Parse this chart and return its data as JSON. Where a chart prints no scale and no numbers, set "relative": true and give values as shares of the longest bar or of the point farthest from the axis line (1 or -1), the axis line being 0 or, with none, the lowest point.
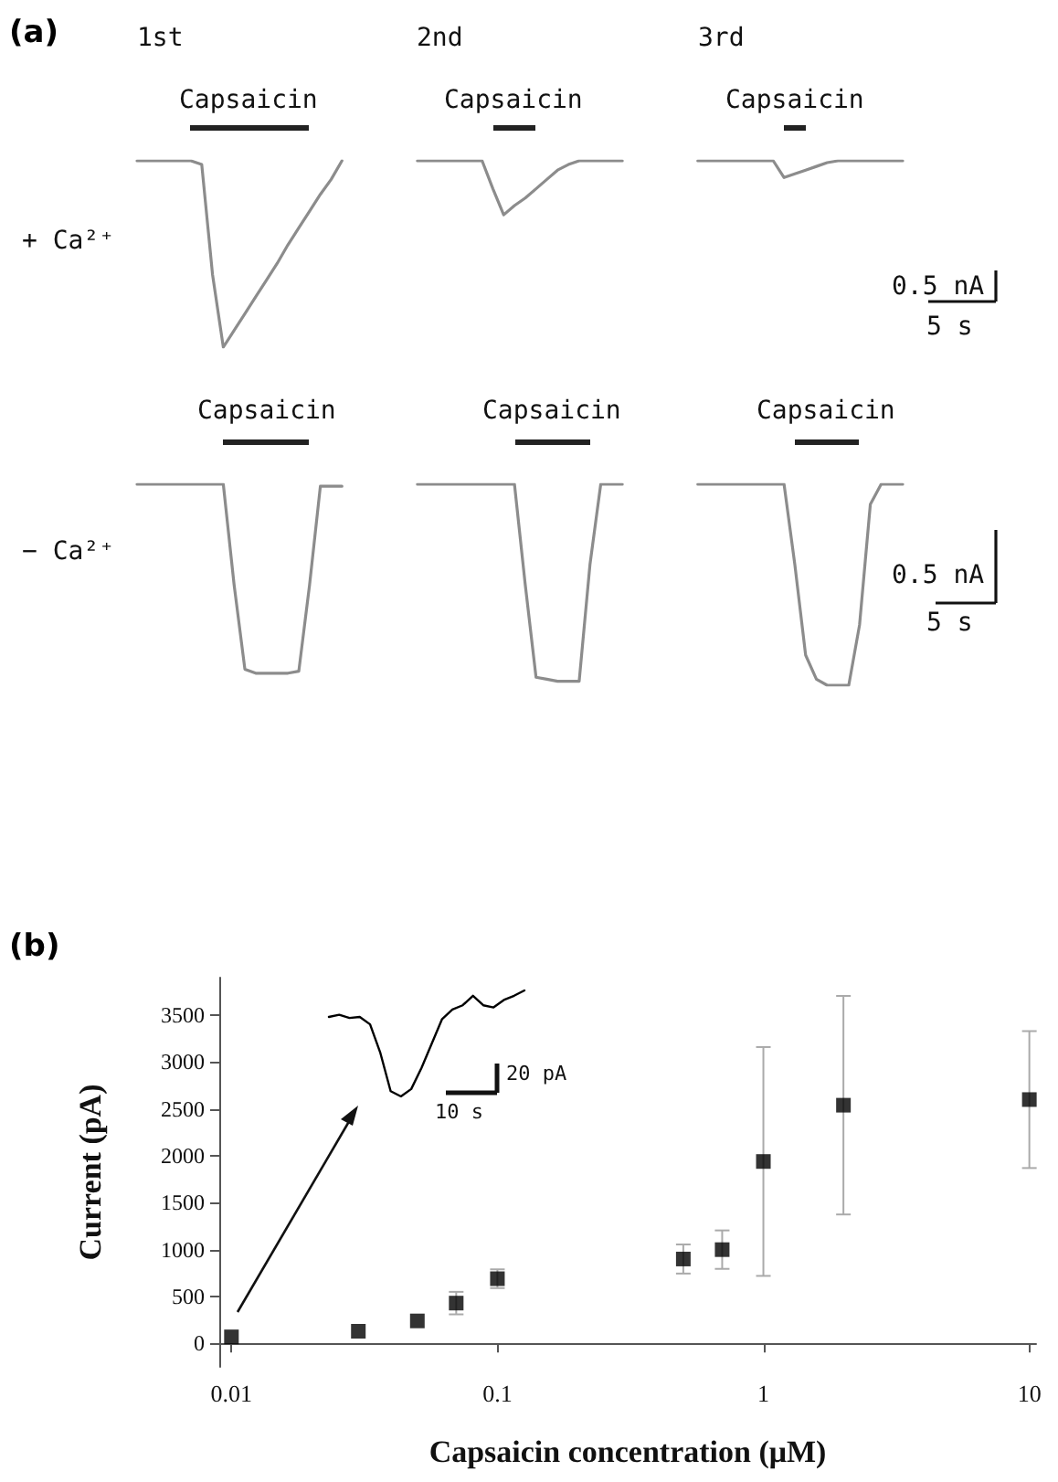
{
  "chart_data": [
    {
      "type": "line",
      "title": "(a)",
      "relative": true,
      "marker": "none",
      "categories": [
        null,
        null,
        null,
        null,
        null,
        null,
        null,
        null,
        null,
        null,
        null,
        null,
        null,
        null,
        null,
        null,
        null,
        null,
        null,
        null,
        null,
        null,
        null,
        null,
        null,
        null,
        null,
        null,
        null,
        null,
        null,
        null,
        null,
        null,
        null,
        null,
        null,
        null,
        null,
        null,
        null,
        null,
        null,
        null,
        null,
        null,
        null,
        null,
        null,
        null,
        null,
        null,
        null,
        null,
        null,
        null,
        null,
        null,
        null,
        null,
        null,
        null,
        null,
        null,
        null,
        null,
        null,
        null,
        null,
        null,
        null,
        null
      ],
      "series": [
        {
          "color": "#8c8c8c",
          "values": [
            1,
            1,
            1,
            1,
            1,
            1,
            0.98,
            0.39,
            0,
            0.09,
            0.18,
            0.27,
            0.36,
            0.45,
            0.55,
            0.64,
            0.73,
            0.82,
            0.9,
            1,
            null,
            null,
            null,
            null,
            null,
            null,
            null,
            null,
            null,
            null,
            null,
            null,
            null,
            null,
            null,
            null,
            null,
            null,
            null,
            null,
            null,
            null,
            null,
            null,
            null,
            null,
            null,
            null,
            null,
            null,
            null,
            null,
            null,
            null,
            null,
            null,
            null,
            null,
            null,
            null,
            null,
            null,
            null,
            null,
            null,
            null,
            null,
            null,
            null,
            null,
            null,
            null
          ]
        },
        {
          "color": "#8c8c8c",
          "values": [
            null,
            null,
            null,
            null,
            null,
            null,
            null,
            null,
            null,
            null,
            null,
            null,
            null,
            null,
            null,
            null,
            null,
            null,
            null,
            null,
            null,
            null,
            null,
            null,
            null,
            null,
            1,
            1,
            1,
            1,
            1,
            1,
            1,
            0.85,
            0.71,
            0.76,
            0.8,
            0.85,
            0.9,
            0.95,
            0.98,
            1,
            1,
            1,
            1,
            1,
            null,
            null,
            null,
            null,
            null,
            null,
            null,
            null,
            null,
            null,
            null,
            null,
            null,
            null,
            null,
            null,
            null,
            null,
            null,
            null,
            null,
            null,
            null,
            null,
            null,
            null
          ]
        },
        {
          "color": "#8c8c8c",
          "values": [
            null,
            null,
            null,
            null,
            null,
            null,
            null,
            null,
            null,
            null,
            null,
            null,
            null,
            null,
            null,
            null,
            null,
            null,
            null,
            null,
            null,
            null,
            null,
            null,
            null,
            null,
            null,
            null,
            null,
            null,
            null,
            null,
            null,
            null,
            null,
            null,
            null,
            null,
            null,
            null,
            null,
            null,
            null,
            null,
            null,
            null,
            null,
            null,
            null,
            null,
            null,
            null,
            1,
            1,
            1,
            1,
            1,
            1,
            1,
            1,
            0.91,
            0.93,
            0.95,
            0.97,
            0.99,
            1,
            1,
            1,
            1,
            1,
            1,
            1
          ]
        }
      ],
      "annotations": [
        "1st",
        "2nd",
        "3rd",
        "+ Ca²⁺",
        "Capsaicin",
        "Capsaicin",
        "Capsaicin",
        "0.5 nA",
        "5 s"
      ]
    },
    {
      "type": "line",
      "relative": true,
      "marker": "none",
      "categories": [
        null,
        null,
        null,
        null,
        null,
        null,
        null,
        null,
        null,
        null,
        null,
        null,
        null,
        null,
        null,
        null,
        null,
        null,
        null,
        null,
        null,
        null,
        null,
        null,
        null,
        null,
        null,
        null,
        null,
        null,
        null,
        null,
        null,
        null,
        null,
        null,
        null,
        null,
        null,
        null,
        null,
        null,
        null,
        null,
        null,
        null,
        null,
        null,
        null,
        null,
        null,
        null,
        null,
        null,
        null,
        null,
        null,
        null,
        null,
        null,
        null,
        null,
        null,
        null,
        null,
        null,
        null,
        null,
        null,
        null,
        null,
        null
      ],
      "series": [
        {
          "color": "#8c8c8c",
          "values": [
            1,
            1,
            1,
            1,
            1,
            1,
            1,
            1,
            1,
            0.5,
            0.08,
            0.06,
            0.06,
            0.06,
            0.06,
            0.07,
            0.5,
            0.99,
            0.99,
            0.99,
            null,
            null,
            null,
            null,
            null,
            null,
            null,
            null,
            null,
            null,
            null,
            null,
            null,
            null,
            null,
            null,
            null,
            null,
            null,
            null,
            null,
            null,
            null,
            null,
            null,
            null,
            null,
            null,
            null,
            null,
            null,
            null,
            null,
            null,
            null,
            null,
            null,
            null,
            null,
            null,
            null,
            null,
            null,
            null,
            null,
            null,
            null,
            null,
            null,
            null,
            null,
            null
          ]
        },
        {
          "color": "#8c8c8c",
          "values": [
            null,
            null,
            null,
            null,
            null,
            null,
            null,
            null,
            null,
            null,
            null,
            null,
            null,
            null,
            null,
            null,
            null,
            null,
            null,
            null,
            null,
            null,
            null,
            null,
            null,
            null,
            1,
            1,
            1,
            1,
            1,
            1,
            1,
            1,
            1,
            1,
            0.5,
            0.04,
            0.03,
            0.02,
            0.02,
            0.02,
            0.6,
            1,
            1,
            1,
            null,
            null,
            null,
            null,
            null,
            null,
            null,
            null,
            null,
            null,
            null,
            null,
            null,
            null,
            null,
            null,
            null,
            null,
            null,
            null,
            null,
            null,
            null,
            null,
            null,
            null
          ]
        },
        {
          "color": "#8c8c8c",
          "values": [
            null,
            null,
            null,
            null,
            null,
            null,
            null,
            null,
            null,
            null,
            null,
            null,
            null,
            null,
            null,
            null,
            null,
            null,
            null,
            null,
            null,
            null,
            null,
            null,
            null,
            null,
            null,
            null,
            null,
            null,
            null,
            null,
            null,
            null,
            null,
            null,
            null,
            null,
            null,
            null,
            null,
            null,
            null,
            null,
            null,
            null,
            null,
            null,
            null,
            null,
            null,
            null,
            1,
            1,
            1,
            1,
            1,
            1,
            1,
            1,
            1,
            0.6,
            0.15,
            0.03,
            0,
            0,
            0,
            0.3,
            0.9,
            1,
            1,
            1
          ]
        }
      ],
      "annotations": [
        "− Ca²⁺",
        "Capsaicin",
        "Capsaicin",
        "Capsaicin",
        "0.5 nA",
        "5 s"
      ]
    },
    {
      "type": "scatter",
      "title": "(b)",
      "xlabel": "Capsaicin concentration (μM)",
      "ylabel": "Current (pA)",
      "color": "#000000",
      "marker": "square",
      "log": "x",
      "x": [
        0.01,
        0.03,
        0.05,
        0.07,
        0.1,
        0.5,
        0.7,
        1,
        2,
        10
      ],
      "values": [
        70,
        130,
        240,
        430,
        690,
        900,
        1000,
        1940,
        2540,
        2600
      ],
      "errors": [
        null,
        null,
        null,
        120,
        100,
        155,
        205,
        1220,
        1165,
        730
      ],
      "xlim": [
        0.009,
        10.6
      ],
      "xticks": [
        0.01,
        0.1,
        1,
        10
      ],
      "ylim": [
        -250,
        3900
      ],
      "yticks": [
        0,
        500,
        1000,
        1500,
        2000,
        2500,
        3000,
        3500
      ]
    },
    {
      "type": "line",
      "relative": true,
      "marker": "none",
      "color": "#000000",
      "categories": [
        null,
        null,
        null,
        null,
        null,
        null,
        null,
        null,
        null,
        null,
        null,
        null,
        null,
        null,
        null,
        null,
        null,
        null,
        null,
        null
      ],
      "values": [
        0.75,
        0.77,
        0.74,
        0.75,
        0.68,
        0.41,
        0.05,
        0,
        0.07,
        0.27,
        0.5,
        0.73,
        0.82,
        0.86,
        0.95,
        0.86,
        0.84,
        0.91,
        0.95,
        1
      ],
      "annotations": [
        "20 pA",
        "10 s"
      ]
    }
  ]
}
